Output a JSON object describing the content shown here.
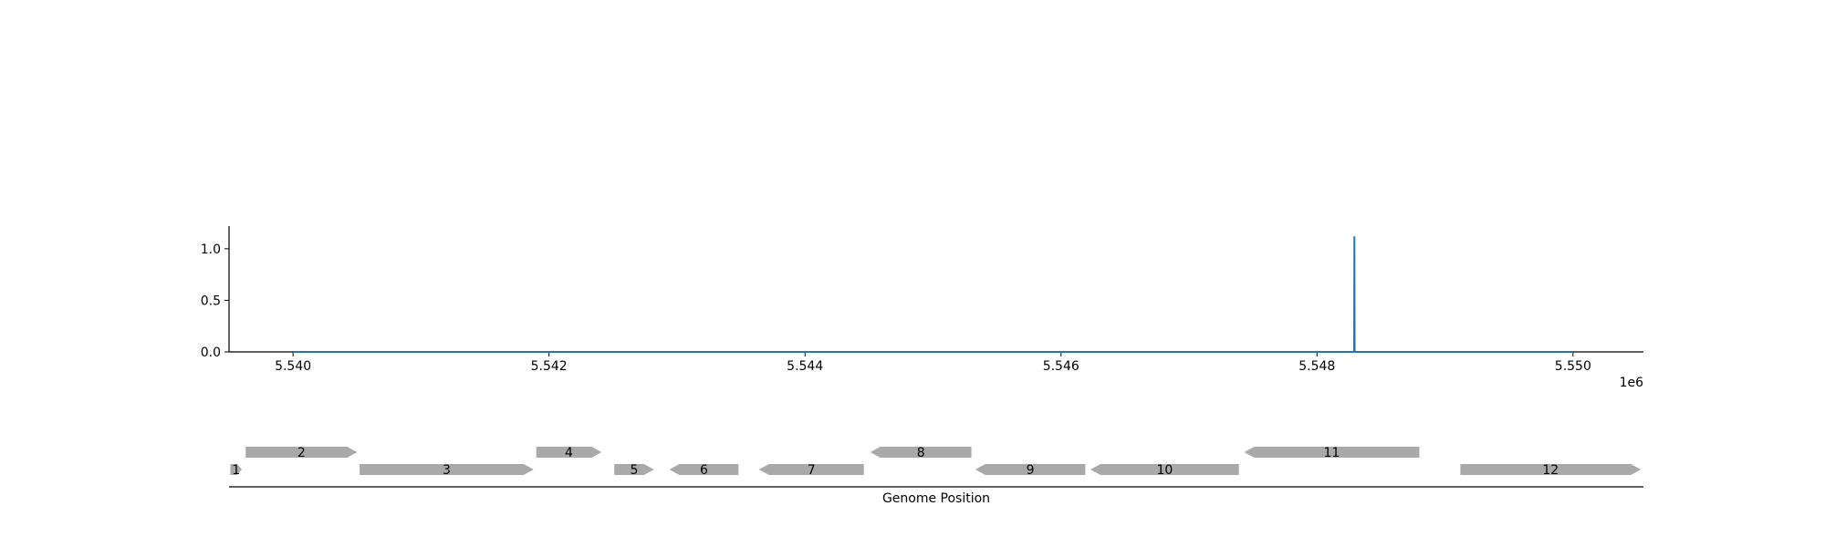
{
  "chart_data": [
    {
      "type": "line",
      "x": [
        5540000,
        5548290,
        5548292,
        5548294,
        5550000
      ],
      "y": [
        0.0,
        0.0,
        1.12,
        0.0,
        0.0
      ],
      "xlim": [
        5539500,
        5550550
      ],
      "ylim": [
        0,
        1.22
      ],
      "yticks": [
        0.0,
        0.5,
        1.0
      ],
      "ytick_labels": [
        "0.0",
        "0.5",
        "1.0"
      ],
      "xticks": [
        5540000,
        5542000,
        5544000,
        5546000,
        5548000,
        5550000
      ],
      "xtick_labels": [
        "5.540",
        "5.542",
        "5.544",
        "5.546",
        "5.548",
        "5.550"
      ],
      "x_offset_label": "1e6",
      "line_color": "#1f77b4",
      "grid": false
    },
    {
      "type": "gene-track",
      "xlabel": "Genome Position",
      "feature_color": "#a9a9a9",
      "features": [
        {
          "label": "1",
          "start": 5539510,
          "end": 5539600,
          "strand": 1,
          "level": 0
        },
        {
          "label": "2",
          "start": 5539630,
          "end": 5540500,
          "strand": 1,
          "level": 1
        },
        {
          "label": "3",
          "start": 5540520,
          "end": 5541880,
          "strand": 1,
          "level": 0
        },
        {
          "label": "4",
          "start": 5541900,
          "end": 5542410,
          "strand": 1,
          "level": 1
        },
        {
          "label": "5",
          "start": 5542510,
          "end": 5542820,
          "strand": 1,
          "level": 0
        },
        {
          "label": "6",
          "start": 5542940,
          "end": 5543480,
          "strand": -1,
          "level": 0
        },
        {
          "label": "7",
          "start": 5543640,
          "end": 5544460,
          "strand": -1,
          "level": 0
        },
        {
          "label": "8",
          "start": 5544510,
          "end": 5545300,
          "strand": -1,
          "level": 1
        },
        {
          "label": "9",
          "start": 5545330,
          "end": 5546190,
          "strand": -1,
          "level": 0
        },
        {
          "label": "10",
          "start": 5546230,
          "end": 5547390,
          "strand": -1,
          "level": 0
        },
        {
          "label": "11",
          "start": 5547430,
          "end": 5548800,
          "strand": -1,
          "level": 1
        },
        {
          "label": "12",
          "start": 5549120,
          "end": 5550530,
          "strand": 1,
          "level": 0
        }
      ]
    }
  ]
}
